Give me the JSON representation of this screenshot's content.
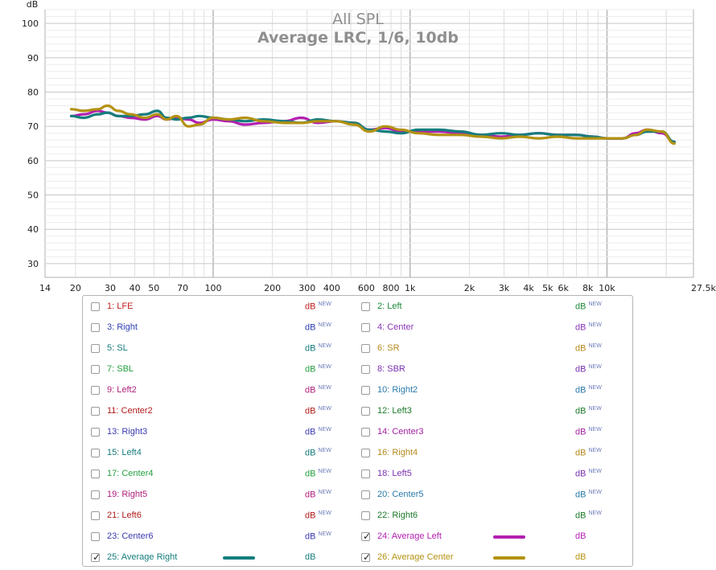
{
  "chart_data": {
    "type": "line",
    "title": "All SPL",
    "subtitle": "Average LRC, 1/6, 10db",
    "ylabel": "dB",
    "xunit": "Hz",
    "x_scale": "log",
    "xlim": [
      14,
      27500
    ],
    "ylim": [
      26,
      104
    ],
    "yticks": [
      30,
      40,
      50,
      60,
      70,
      80,
      90,
      100
    ],
    "xticks": [
      {
        "v": 14,
        "t": "14"
      },
      {
        "v": 20,
        "t": "20"
      },
      {
        "v": 30,
        "t": "30"
      },
      {
        "v": 40,
        "t": "40"
      },
      {
        "v": 50,
        "t": "50"
      },
      {
        "v": 70,
        "t": "70"
      },
      {
        "v": 100,
        "t": "100"
      },
      {
        "v": 200,
        "t": "200"
      },
      {
        "v": 300,
        "t": "300"
      },
      {
        "v": 400,
        "t": "400"
      },
      {
        "v": 600,
        "t": "600"
      },
      {
        "v": 800,
        "t": "800"
      },
      {
        "v": 1000,
        "t": "1k"
      },
      {
        "v": 2000,
        "t": "2k"
      },
      {
        "v": 3000,
        "t": "3k"
      },
      {
        "v": 4000,
        "t": "4k"
      },
      {
        "v": 5000,
        "t": "5k"
      },
      {
        "v": 6000,
        "t": "6k"
      },
      {
        "v": 8000,
        "t": "8k"
      },
      {
        "v": 10000,
        "t": "10k"
      },
      {
        "v": 27500,
        "t": "27.5kHz"
      }
    ],
    "grid": true,
    "legend_placement": "bottom",
    "series": [
      {
        "name": "Average Left",
        "color": "#b31fb1",
        "x": [
          19,
          22,
          26,
          29,
          33,
          38,
          45,
          52,
          58,
          65,
          75,
          85,
          100,
          120,
          145,
          180,
          230,
          280,
          340,
          420,
          520,
          620,
          750,
          900,
          1100,
          1400,
          1800,
          2300,
          2900,
          3600,
          4500,
          5600,
          7000,
          8500,
          10000,
          12000,
          14000,
          16000,
          19000,
          22000
        ],
        "y": [
          73,
          73.5,
          74.5,
          74,
          73,
          72.5,
          72,
          73,
          72,
          72.5,
          72,
          71,
          72,
          71.5,
          70.5,
          71,
          71.5,
          72.5,
          71,
          71.5,
          71,
          69,
          69.5,
          68.5,
          68.5,
          68.5,
          68,
          67.5,
          67,
          67.5,
          68,
          67.5,
          67.5,
          67,
          66.5,
          66.5,
          68,
          69,
          68,
          65.5
        ]
      },
      {
        "name": "Average Right",
        "color": "#157d7d",
        "x": [
          19,
          22,
          26,
          29,
          33,
          38,
          45,
          52,
          58,
          65,
          75,
          85,
          100,
          120,
          145,
          180,
          230,
          280,
          340,
          420,
          520,
          620,
          750,
          900,
          1100,
          1400,
          1800,
          2300,
          2900,
          3600,
          4500,
          5600,
          7000,
          8500,
          10000,
          12000,
          14000,
          16000,
          19000,
          22000
        ],
        "y": [
          73,
          72.5,
          73.5,
          74,
          73,
          73,
          73.5,
          74.5,
          72.5,
          72,
          72.5,
          73,
          72.5,
          72,
          71.5,
          72,
          71.5,
          71,
          72,
          71.5,
          71,
          69,
          68.5,
          68,
          69,
          69,
          68.5,
          67.5,
          68,
          67.5,
          68,
          67.5,
          67.5,
          67,
          66.5,
          66.5,
          67.5,
          68.5,
          68.5,
          65.5
        ]
      },
      {
        "name": "Average Center",
        "color": "#b39212",
        "x": [
          19,
          22,
          26,
          29,
          33,
          38,
          45,
          52,
          58,
          65,
          75,
          85,
          100,
          120,
          145,
          180,
          230,
          280,
          340,
          420,
          520,
          620,
          750,
          900,
          1100,
          1400,
          1800,
          2300,
          2900,
          3600,
          4500,
          5600,
          7000,
          8500,
          10000,
          12000,
          14000,
          16000,
          19000,
          22000
        ],
        "y": [
          75,
          74.5,
          75,
          76,
          74.5,
          73.5,
          72.5,
          73.5,
          72,
          73,
          70,
          70.5,
          72.5,
          72,
          72.5,
          71.5,
          71,
          71,
          71.5,
          71.5,
          70.5,
          68.5,
          70,
          69,
          68,
          67.5,
          67.5,
          67,
          66.5,
          67,
          66.5,
          67,
          66.5,
          66.5,
          66.5,
          66.5,
          67.5,
          69,
          68.5,
          65
        ]
      }
    ]
  },
  "legend": {
    "unit": "dB",
    "new_tag": "NEW",
    "items": [
      {
        "label": "1: LFE",
        "color": "#c01f1f",
        "checked": false,
        "new": true
      },
      {
        "label": "2: Left",
        "color": "#1e8a3a",
        "checked": false,
        "new": true
      },
      {
        "label": "3: Right",
        "color": "#2f3fb3",
        "checked": false,
        "new": true
      },
      {
        "label": "4: Center",
        "color": "#8a36b6",
        "checked": false,
        "new": true
      },
      {
        "label": "5: SL",
        "color": "#167a7a",
        "checked": false,
        "new": true
      },
      {
        "label": "6: SR",
        "color": "#b58a1a",
        "checked": false,
        "new": true
      },
      {
        "label": "7: SBL",
        "color": "#25a040",
        "checked": false,
        "new": true
      },
      {
        "label": "8: SBR",
        "color": "#7a2fb0",
        "checked": false,
        "new": true
      },
      {
        "label": "9: Left2",
        "color": "#b0207a",
        "checked": false,
        "new": true
      },
      {
        "label": "10: Right2",
        "color": "#2a7aa8",
        "checked": false,
        "new": true
      },
      {
        "label": "11: Center2",
        "color": "#b01a1a",
        "checked": false,
        "new": true
      },
      {
        "label": "12: Left3",
        "color": "#1b7a2a",
        "checked": false,
        "new": true
      },
      {
        "label": "13: Right3",
        "color": "#3a3ab0",
        "checked": false,
        "new": true
      },
      {
        "label": "14: Center3",
        "color": "#a020a0",
        "checked": false,
        "new": true
      },
      {
        "label": "15: Left4",
        "color": "#167a7a",
        "checked": false,
        "new": true
      },
      {
        "label": "16: Right4",
        "color": "#b58a1a",
        "checked": false,
        "new": true
      },
      {
        "label": "17: Center4",
        "color": "#25a040",
        "checked": false,
        "new": true
      },
      {
        "label": "18: Left5",
        "color": "#7a2fb0",
        "checked": false,
        "new": true
      },
      {
        "label": "19: Right5",
        "color": "#b0207a",
        "checked": false,
        "new": true
      },
      {
        "label": "20: Center5",
        "color": "#2a7aa8",
        "checked": false,
        "new": true
      },
      {
        "label": "21: Left6",
        "color": "#b01a1a",
        "checked": false,
        "new": true
      },
      {
        "label": "22: Right6",
        "color": "#1b7a2a",
        "checked": false,
        "new": true
      },
      {
        "label": "23: Center6",
        "color": "#3a3ab0",
        "checked": false,
        "new": true
      },
      {
        "label": "24: Average Left",
        "color": "#b31fb1",
        "checked": true,
        "new": false,
        "swatch": "#b31fb1"
      },
      {
        "label": "25: Average Right",
        "color": "#157d7d",
        "checked": true,
        "new": false,
        "swatch": "#157d7d"
      },
      {
        "label": "26: Average Center",
        "color": "#b39212",
        "checked": true,
        "new": false,
        "swatch": "#b39212"
      }
    ]
  }
}
